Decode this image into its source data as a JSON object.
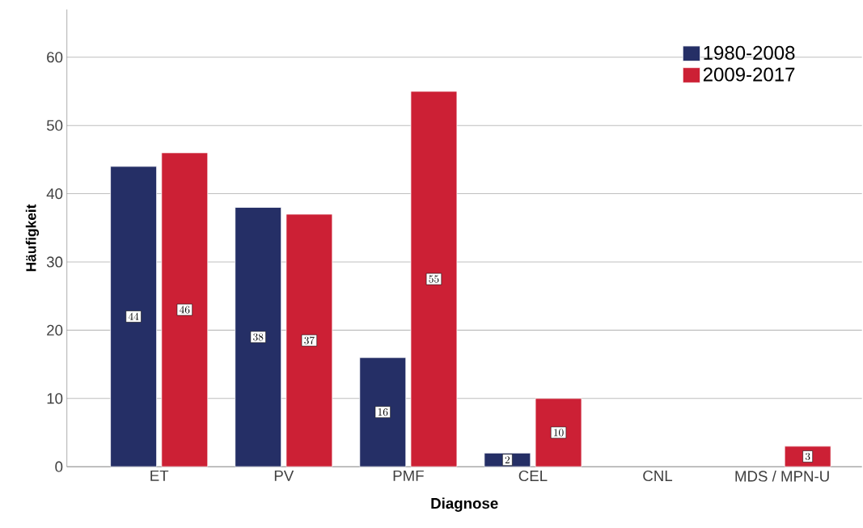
{
  "chart_data": {
    "type": "bar",
    "xlabel": "Diagnose",
    "ylabel": "Häufigkeit",
    "categories": [
      "ET",
      "PV",
      "PMF",
      "CEL",
      "CNL",
      "MDS / MPN-U"
    ],
    "series": [
      {
        "name": "1980-2008",
        "color": "#252f66",
        "values": [
          44,
          38,
          16,
          2,
          null,
          null
        ]
      },
      {
        "name": "2009-2017",
        "color": "#cc2035",
        "values": [
          46,
          37,
          55,
          10,
          null,
          3
        ]
      }
    ],
    "ylim": [
      0,
      67
    ],
    "yticks": [
      0,
      10,
      20,
      30,
      40,
      50,
      60
    ],
    "grid": "y",
    "legend": "top right",
    "data_labels": true
  }
}
